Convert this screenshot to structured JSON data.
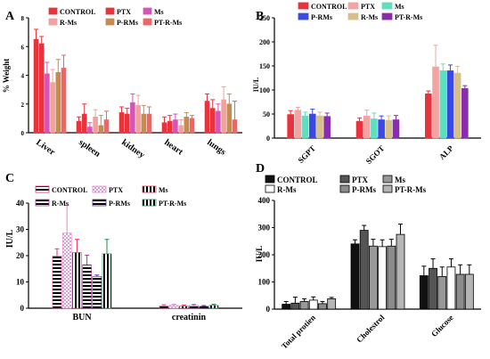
{
  "chart_data": [
    {
      "panel": "A",
      "type": "bar",
      "ylabel": "% Weight",
      "ylim": [
        0,
        8
      ],
      "yticks": [
        0,
        2,
        4,
        6,
        8
      ],
      "categories": [
        "Liver",
        "spleen",
        "kidney",
        "heart",
        "lungs"
      ],
      "series": [
        {
          "name": "CONTROL",
          "color": "#e8323c",
          "values": [
            6.5,
            0.8,
            1.4,
            0.7,
            2.2
          ],
          "errors": [
            0.7,
            0.3,
            0.4,
            0.4,
            0.5
          ]
        },
        {
          "name": "PTX",
          "color": "#e8323c",
          "values": [
            6.2,
            1.3,
            1.3,
            0.8,
            1.7
          ],
          "errors": [
            0.5,
            0.7,
            0.4,
            0.4,
            0.6
          ]
        },
        {
          "name": "Ms",
          "color": "#d455b8",
          "values": [
            4.1,
            0.4,
            2.1,
            0.9,
            1.5
          ],
          "errors": [
            0.8,
            0.3,
            0.6,
            0.4,
            0.5
          ]
        },
        {
          "name": "R-Ms",
          "color": "#f2a19f",
          "values": [
            3.5,
            1.1,
            1.9,
            0.5,
            2.3
          ],
          "errors": [
            0.9,
            0.5,
            0.7,
            0.4,
            0.9
          ]
        },
        {
          "name": "P-RMs",
          "color": "#c98a4d",
          "values": [
            4.2,
            0.5,
            1.3,
            1.1,
            2.0
          ],
          "errors": [
            0.9,
            0.7,
            0.6,
            0.3,
            0.7
          ]
        },
        {
          "name": "PT-R-Ms",
          "color": "#f06464",
          "values": [
            4.5,
            0.9,
            1.3,
            1.0,
            0.9
          ],
          "errors": [
            0.9,
            0.6,
            0.5,
            0.2,
            1.3
          ]
        }
      ]
    },
    {
      "panel": "B",
      "type": "bar",
      "ylabel": "IU/L",
      "ylim": [
        0,
        250
      ],
      "yticks": [
        0,
        50,
        100,
        150,
        200,
        250
      ],
      "categories": [
        "SGPT",
        "SGOT",
        "ALP"
      ],
      "series": [
        {
          "name": "CONTROL",
          "color": "#e8323c",
          "values": [
            49,
            35,
            92
          ],
          "errors": [
            8,
            7,
            6
          ]
        },
        {
          "name": "PTX",
          "color": "#f4a3a3",
          "values": [
            58,
            46,
            148
          ],
          "errors": [
            6,
            12,
            45
          ]
        },
        {
          "name": "Ms",
          "color": "#5ee0c0",
          "values": [
            46,
            40,
            140
          ],
          "errors": [
            8,
            12,
            14
          ]
        },
        {
          "name": "P-RMs",
          "color": "#3c48e6",
          "values": [
            50,
            38,
            140
          ],
          "errors": [
            10,
            8,
            12
          ]
        },
        {
          "name": "R-Ms",
          "color": "#d8c08a",
          "values": [
            46,
            37,
            135
          ],
          "errors": [
            8,
            9,
            14
          ]
        },
        {
          "name": "PT-R-Ms",
          "color": "#8a2cb0",
          "values": [
            45,
            38,
            103
          ],
          "errors": [
            7,
            9,
            6
          ]
        }
      ]
    },
    {
      "panel": "C",
      "type": "bar",
      "ylabel": "IU/L",
      "ylim": [
        0,
        40
      ],
      "yticks": [
        0,
        10,
        20,
        30,
        40
      ],
      "categories": [
        "BUN",
        "creatinin"
      ],
      "series": [
        {
          "name": "CONTROL",
          "color": "#e8328f",
          "values": [
            19.8,
            0.9
          ],
          "errors": [
            2.8,
            0.4
          ]
        },
        {
          "name": "PTX",
          "color": "#f080d0",
          "values": [
            28.6,
            1.1
          ],
          "errors": [
            10.5,
            0.4
          ]
        },
        {
          "name": "Ms",
          "color": "#e83256",
          "values": [
            21.2,
            0.8
          ],
          "errors": [
            5.0,
            0.4
          ]
        },
        {
          "name": "R-Ms",
          "color": "#a0409c",
          "values": [
            16.5,
            1.0
          ],
          "errors": [
            3.7,
            0.4
          ]
        },
        {
          "name": "P-RMs",
          "color": "#5a2a8a",
          "values": [
            12.1,
            0.7
          ],
          "errors": [
            0.5,
            0.3
          ]
        },
        {
          "name": "PT-R-Ms",
          "color": "#2a8a5a",
          "values": [
            20.7,
            1.1
          ],
          "errors": [
            5.5,
            0.4
          ]
        }
      ]
    },
    {
      "panel": "D",
      "type": "bar",
      "ylabel": "IU/L",
      "ylim": [
        0,
        400
      ],
      "yticks": [
        0,
        100,
        200,
        300,
        400
      ],
      "categories": [
        "Total protien",
        "Cholestrol",
        "Glucose"
      ],
      "series": [
        {
          "name": "CONTROL",
          "color": "#111111",
          "values": [
            18,
            240,
            123
          ],
          "errors": [
            10,
            15,
            35
          ]
        },
        {
          "name": "PTX",
          "color": "#555555",
          "values": [
            22,
            290,
            150
          ],
          "errors": [
            22,
            18,
            35
          ]
        },
        {
          "name": "Ms",
          "color": "#999999",
          "values": [
            28,
            232,
            120
          ],
          "errors": [
            10,
            25,
            35
          ]
        },
        {
          "name": "R-Ms",
          "color": "#ffffff",
          "values": [
            33,
            230,
            155
          ],
          "errors": [
            12,
            25,
            30
          ]
        },
        {
          "name": "P-RMs",
          "color": "#8c8c8c",
          "values": [
            20,
            232,
            128
          ],
          "errors": [
            8,
            25,
            35
          ]
        },
        {
          "name": "PT-R-Ms",
          "color": "#b5b5b5",
          "values": [
            38,
            275,
            128
          ],
          "errors": [
            5,
            38,
            35
          ]
        }
      ]
    }
  ],
  "labels": {
    "A": "A",
    "B": "B",
    "C": "C",
    "D": "D"
  }
}
